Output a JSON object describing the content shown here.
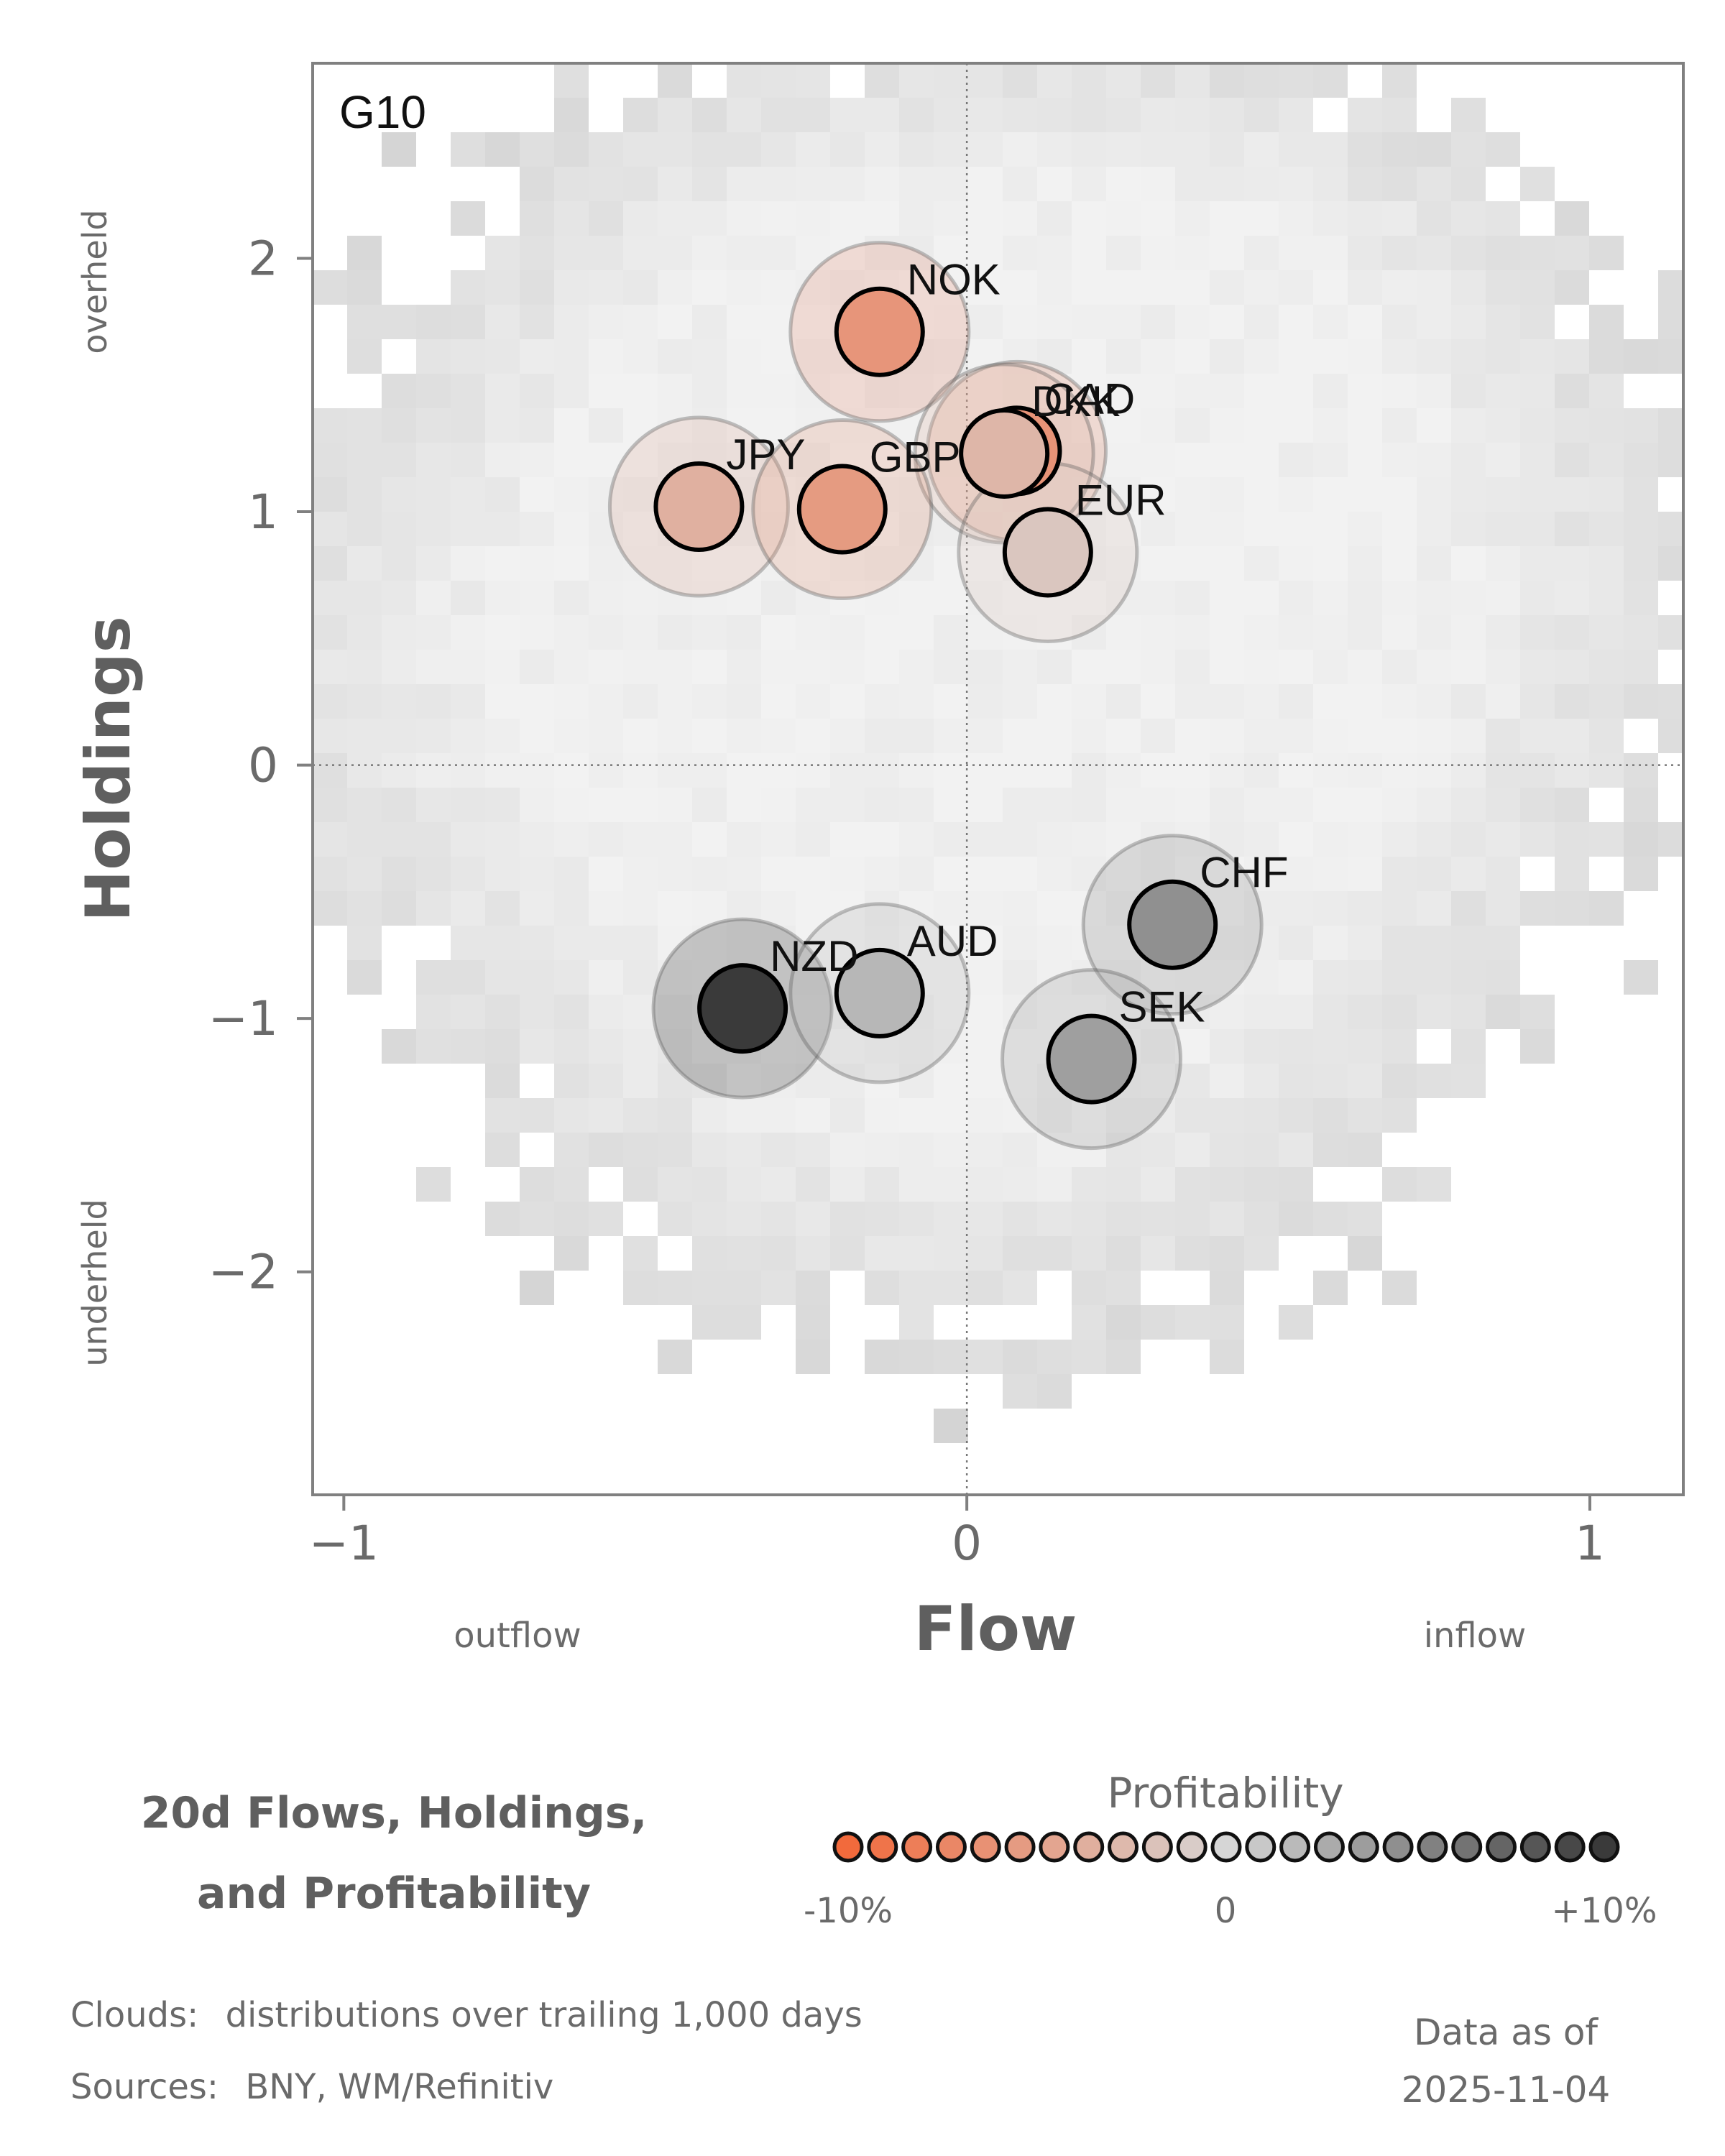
{
  "chart_data": {
    "type": "scatter",
    "panel_label": "G10",
    "xlabel": "Flow",
    "ylabel": "Holdings",
    "xlim": [
      -1.05,
      1.15
    ],
    "ylim": [
      -2.88,
      2.77
    ],
    "x_ticks": [
      -1,
      0,
      1
    ],
    "x_tick_labels": [
      "−1",
      "0",
      "1"
    ],
    "y_ticks": [
      2,
      1,
      0,
      -1,
      -2
    ],
    "y_tick_labels": [
      "2",
      "1",
      "0",
      "−1",
      "−2"
    ],
    "x_axis_annotations": {
      "left": "outflow",
      "right": "inflow"
    },
    "y_axis_annotations": {
      "top": "overheld",
      "bottom": "underheld"
    },
    "reference_lines": {
      "x": 0,
      "y": 0
    },
    "points": [
      {
        "label": "NOK",
        "flow": -0.14,
        "holdings": 1.71,
        "profitability": -0.06
      },
      {
        "label": "CAD",
        "flow": 0.08,
        "holdings": 1.24,
        "profitability": -0.062
      },
      {
        "label": "DKK",
        "flow": 0.06,
        "holdings": 1.23,
        "profitability": -0.03
      },
      {
        "label": "JPY",
        "flow": -0.43,
        "holdings": 1.02,
        "profitability": -0.035
      },
      {
        "label": "GBP",
        "flow": -0.2,
        "holdings": 1.01,
        "profitability": -0.055
      },
      {
        "label": "EUR",
        "flow": 0.13,
        "holdings": 0.84,
        "profitability": -0.015
      },
      {
        "label": "CHF",
        "flow": 0.33,
        "holdings": -0.63,
        "profitability": 0.045
      },
      {
        "label": "NZD",
        "flow": -0.36,
        "holdings": -0.96,
        "profitability": 0.1
      },
      {
        "label": "AUD",
        "flow": -0.14,
        "holdings": -0.9,
        "profitability": 0.02
      },
      {
        "label": "SEK",
        "flow": 0.2,
        "holdings": -1.16,
        "profitability": 0.035
      }
    ],
    "legend": {
      "title": "Profitability",
      "min_label": "-10%",
      "mid_label": "0",
      "max_label": "+10%",
      "range": [
        -0.1,
        0.1
      ],
      "colors": {
        "negative": "#f26a3c",
        "neutral": "#d6d6d6",
        "positive": "#3a3a3a"
      }
    },
    "cloud_description": "distributions over trailing 1,000 days"
  },
  "title_line1": "20d Flows, Holdings,",
  "title_line2": "and Profitability",
  "footer": {
    "clouds_prefix": "Clouds:",
    "clouds_text": "distributions over trailing 1,000 days",
    "sources_prefix": "Sources:",
    "sources_text": "BNY, WM/Refinitiv",
    "data_as_of_label": "Data as of",
    "data_as_of_date": "2025-11-04"
  },
  "colors": {
    "axis": "#808080",
    "text": "#6a6a6a",
    "title": "#5f5f5f"
  }
}
